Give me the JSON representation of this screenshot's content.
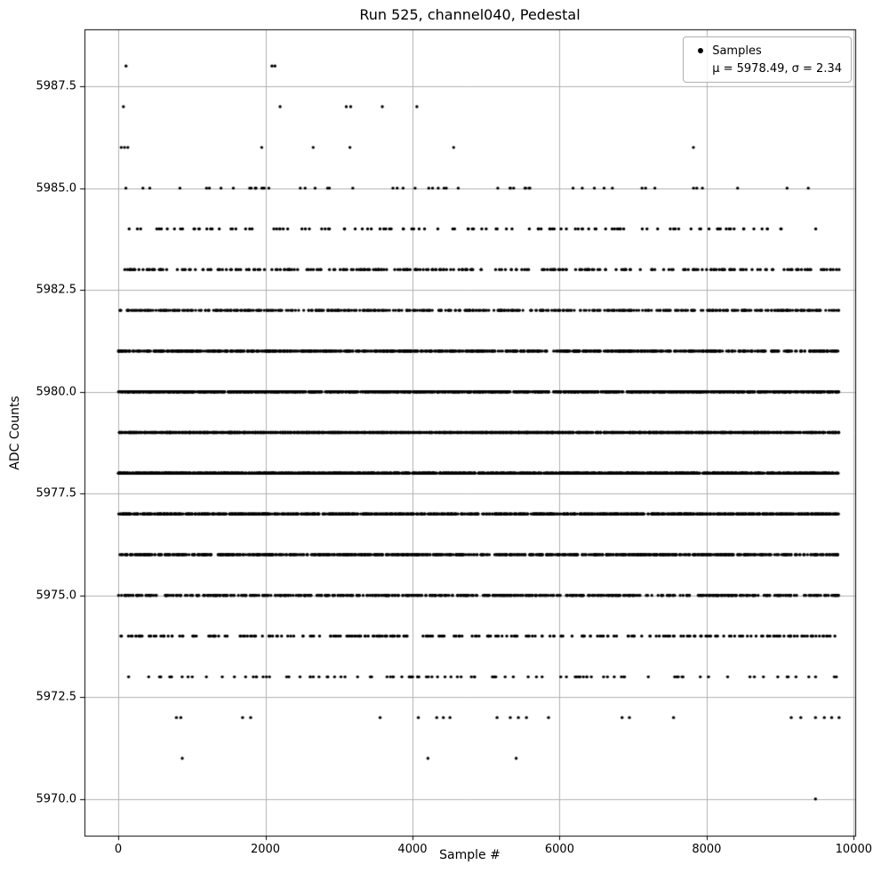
{
  "chart_data": {
    "type": "scatter",
    "title": "Run 525, channel040, Pedestal",
    "xlabel": "Sample #",
    "ylabel": "ADC Counts",
    "mean": 5978.49,
    "sigma": 2.34,
    "legend": {
      "samples_label": "Samples",
      "stats_label": "μ = 5978.49, σ = 2.34"
    },
    "legend_position": "upper right",
    "grid": true,
    "grid_color": "#b0b0b0",
    "marker_color": "#000000",
    "xlim": [
      -460,
      10020
    ],
    "ylim": [
      5969.1,
      5988.9
    ],
    "x_max": 9800,
    "xticks": [
      0,
      2000,
      4000,
      6000,
      8000,
      10000
    ],
    "xtick_labels": [
      "0",
      "2000",
      "4000",
      "6000",
      "8000",
      "10000"
    ],
    "yticks": [
      5970.0,
      5972.5,
      5975.0,
      5977.5,
      5980.0,
      5982.5,
      5985.0,
      5987.5
    ],
    "ytick_labels": [
      "5970.0",
      "5972.5",
      "5975.0",
      "5977.5",
      "5980.0",
      "5982.5",
      "5985.0",
      "5987.5"
    ],
    "levels": [
      {
        "adc": 5988,
        "x": [
          105,
          2090,
          2130
        ]
      },
      {
        "adc": 5987,
        "x": [
          70,
          2200,
          3100,
          3160,
          3590,
          4060
        ]
      },
      {
        "adc": 5986,
        "x": [
          40,
          85,
          130,
          1950,
          2650,
          3150,
          4560,
          7820
        ]
      },
      {
        "adc": 5985,
        "count": 55
      },
      {
        "adc": 5984,
        "count": 120
      },
      {
        "adc": 5983,
        "count": 280
      },
      {
        "adc": 5982,
        "count": 550
      },
      {
        "adc": 5981,
        "count": 950
      },
      {
        "adc": 5980,
        "count": 1350
      },
      {
        "adc": 5979,
        "count": 1650
      },
      {
        "adc": 5978,
        "count": 1600
      },
      {
        "adc": 5977,
        "count": 1350
      },
      {
        "adc": 5976,
        "count": 950
      },
      {
        "adc": 5975,
        "count": 560
      },
      {
        "adc": 5974,
        "count": 270
      },
      {
        "adc": 5973,
        "count": 105
      },
      {
        "adc": 5972,
        "x": [
          790,
          850,
          1690,
          1800,
          3560,
          4080,
          4330,
          4420,
          4510,
          5150,
          5330,
          5440,
          5550,
          5850,
          6850,
          6950,
          7550,
          9150,
          9280,
          9480,
          9600,
          9700,
          9800
        ]
      },
      {
        "adc": 5971,
        "x": [
          870,
          4210,
          5410
        ]
      },
      {
        "adc": 5970,
        "x": [
          9480
        ]
      }
    ]
  }
}
